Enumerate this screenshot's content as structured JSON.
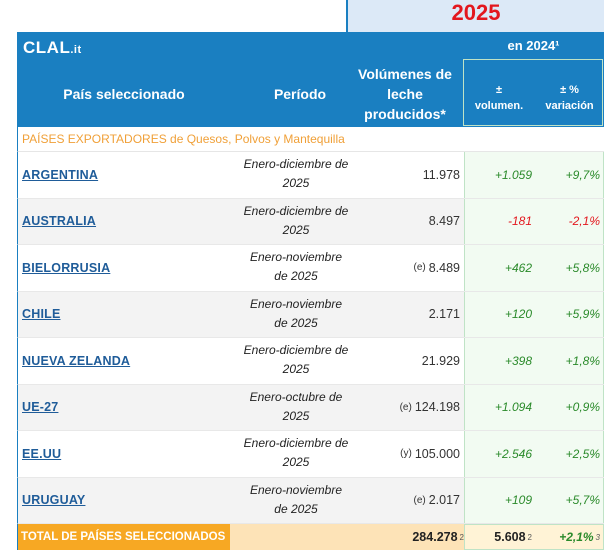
{
  "year": "2025",
  "logo": {
    "main": "CLAL",
    "suffix": ".it"
  },
  "header": {
    "en_year": "en 2024¹",
    "pais": "País seleccionado",
    "periodo": "Período",
    "vol_line1": "Volúmenes de",
    "vol_line2": "leche",
    "vol_line3": "producidos*",
    "dv_line1": "±",
    "dv_line2": "volumen.",
    "dp_line1": "± %",
    "dp_line2": "variación"
  },
  "category": "PAÍSES EXPORTADORES de Quesos, Polvos y Mantequilla",
  "rows": [
    {
      "pais": "ARGENTINA",
      "per1": "Enero-diciembre de",
      "per2": "2025",
      "note": "",
      "vol": "11.978",
      "dv": "+1.059",
      "dp": "+9,7%",
      "sign": "pos"
    },
    {
      "pais": "AUSTRALIA",
      "per1": "Enero-diciembre de",
      "per2": "2025",
      "note": "",
      "vol": "8.497",
      "dv": "-181",
      "dp": "-2,1%",
      "sign": "neg"
    },
    {
      "pais": "BIELORRUSIA",
      "per1": "Enero-noviembre",
      "per2": "de 2025",
      "note": "(e)",
      "vol": "8.489",
      "dv": "+462",
      "dp": "+5,8%",
      "sign": "pos"
    },
    {
      "pais": "CHILE",
      "per1": "Enero-noviembre",
      "per2": "de 2025",
      "note": "",
      "vol": "2.171",
      "dv": "+120",
      "dp": "+5,9%",
      "sign": "pos"
    },
    {
      "pais": "NUEVA ZELANDA",
      "per1": "Enero-diciembre de",
      "per2": "2025",
      "note": "",
      "vol": "21.929",
      "dv": "+398",
      "dp": "+1,8%",
      "sign": "pos"
    },
    {
      "pais": "UE-27",
      "per1": "Enero-octubre de",
      "per2": "2025",
      "note": "(e)",
      "vol": "124.198",
      "dv": "+1.094",
      "dp": "+0,9%",
      "sign": "pos"
    },
    {
      "pais": "EE.UU",
      "per1": "Enero-diciembre de",
      "per2": "2025",
      "note": "(y)",
      "vol": "105.000",
      "dv": "+2.546",
      "dp": "+2,5%",
      "sign": "pos"
    },
    {
      "pais": "URUGUAY",
      "per1": "Enero-noviembre",
      "per2": "de 2025",
      "note": "(e)",
      "vol": "2.017",
      "dv": "+109",
      "dp": "+5,7%",
      "sign": "pos"
    }
  ],
  "total": {
    "label": "TOTAL DE PAÍSES SELECCIONADOS",
    "vol": "284.278",
    "vol_sup": "2",
    "dv": "5.608",
    "dv_sup": "2",
    "dp": "+2,1%",
    "dp_sup": "3"
  }
}
